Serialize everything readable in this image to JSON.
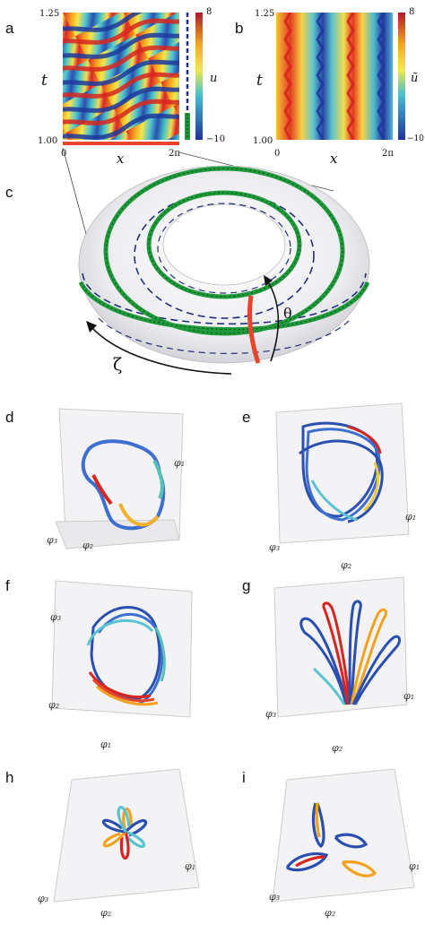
{
  "panels": {
    "a": {
      "label": "a",
      "ylabel": "t",
      "xlabel": "x",
      "ytick_top": "1.25",
      "ytick_bottom": "1.00",
      "xtick_left": "0",
      "xtick_right": "2π",
      "cbar_label": "u",
      "cbar_max": "8",
      "cbar_min": "−10"
    },
    "b": {
      "label": "b",
      "ylabel": "t",
      "xlabel": "x",
      "ytick_top": "1.25",
      "ytick_bottom": "1.00",
      "xtick_left": "0",
      "xtick_right": "2π",
      "cbar_label": "ũ",
      "cbar_max": "8",
      "cbar_min": "−10"
    },
    "c": {
      "label": "c",
      "zeta": "ζ",
      "theta": "θ"
    },
    "d": {
      "label": "d",
      "ax1": "φ₂",
      "ax2": "φ₁",
      "ax3": "φ₃"
    },
    "e": {
      "label": "e",
      "ax1": "φ₂",
      "ax2": "φ₃",
      "ax3": "φ₁"
    },
    "f": {
      "label": "f",
      "ax1": "φ₁",
      "ax2": "φ₃",
      "ax3": "φ₂"
    },
    "g": {
      "label": "g",
      "ax1": "φ₂",
      "ax2": "φ₃",
      "ax3": "φ₁"
    },
    "h": {
      "label": "h",
      "ax1": "φ₂",
      "ax2": "φ₃",
      "ax3": "φ₁"
    },
    "i": {
      "label": "i",
      "ax1": "φ₂",
      "ax2": "φ₃",
      "ax3": "φ₁"
    }
  },
  "colors": {
    "red": "#e8452b",
    "green": "#1f9a3a",
    "navy": "#22307a",
    "torus": "#e9e9ee"
  },
  "icons": [
    "arrow-zeta-icon",
    "arrow-theta-icon"
  ]
}
